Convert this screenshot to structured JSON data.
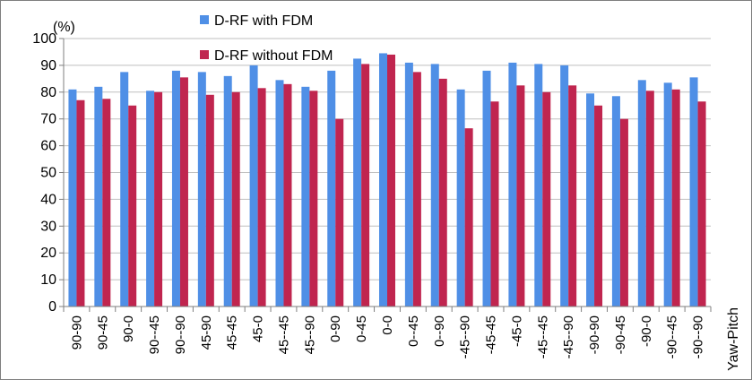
{
  "chart_data": {
    "type": "bar",
    "unit_label": "(%)",
    "xlabel": "Yaw-Pitch",
    "ylabel": "",
    "ylim": [
      0,
      100
    ],
    "yticks": [
      0,
      10,
      20,
      30,
      40,
      50,
      60,
      70,
      80,
      90,
      100
    ],
    "grid": "horizontal",
    "legend_position": "top-center",
    "categories": [
      "90-90",
      "90-45",
      "90-0",
      "90--45",
      "90--90",
      "45-90",
      "45-45",
      "45-0",
      "45--45",
      "45--90",
      "0-90",
      "0-45",
      "0-0",
      "0--45",
      "0--90",
      "-45--90",
      "-45-45",
      "-45-0",
      "-45--45",
      "-45--90",
      "-90-90",
      "-90-45",
      "-90-0",
      "-90--45",
      "-90--90"
    ],
    "series": [
      {
        "name": "D-RF with FDM",
        "color": "#4f8fe6",
        "values": [
          81,
          82,
          87.5,
          80.5,
          88,
          87.5,
          86,
          90,
          84.5,
          82,
          88,
          92.5,
          94.5,
          91,
          90.5,
          81,
          88,
          91,
          90.5,
          90,
          79.5,
          78.5,
          84.5,
          83.5,
          85.5
        ]
      },
      {
        "name": "D-RF without FDM",
        "color": "#c0254f",
        "values": [
          77,
          77.5,
          75,
          80,
          85.5,
          79,
          80,
          81.5,
          83,
          80.5,
          70,
          90.5,
          94,
          87.5,
          85,
          66.5,
          76.5,
          82.5,
          80,
          82.5,
          75,
          70,
          80.5,
          81,
          76.5
        ]
      }
    ]
  }
}
